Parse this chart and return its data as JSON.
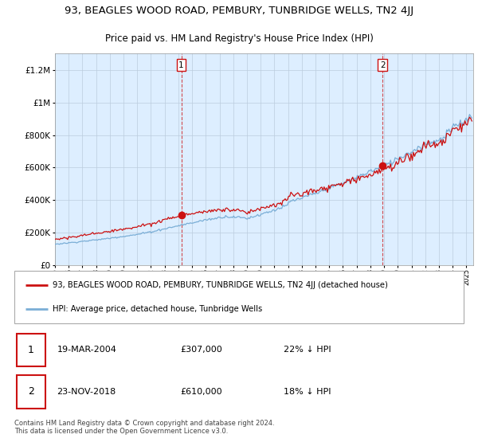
{
  "title": "93, BEAGLES WOOD ROAD, PEMBURY, TUNBRIDGE WELLS, TN2 4JJ",
  "subtitle": "Price paid vs. HM Land Registry's House Price Index (HPI)",
  "legend_line1": "93, BEAGLES WOOD ROAD, PEMBURY, TUNBRIDGE WELLS, TN2 4JJ (detached house)",
  "legend_line2": "HPI: Average price, detached house, Tunbridge Wells",
  "sale1_date": "19-MAR-2004",
  "sale1_price": "£307,000",
  "sale1_hpi": "22% ↓ HPI",
  "sale1_year": 2004.21,
  "sale1_value": 307000,
  "sale2_date": "23-NOV-2018",
  "sale2_price": "£610,000",
  "sale2_hpi": "18% ↓ HPI",
  "sale2_year": 2018.9,
  "sale2_value": 610000,
  "hpi_color": "#7aaed6",
  "price_color": "#cc1111",
  "background_color": "#ddeeff",
  "grid_color": "#bbccdd",
  "ylim": [
    0,
    1300000
  ],
  "xlim_start": 1995.0,
  "xlim_end": 2025.5,
  "footer": "Contains HM Land Registry data © Crown copyright and database right 2024.\nThis data is licensed under the Open Government Licence v3.0."
}
